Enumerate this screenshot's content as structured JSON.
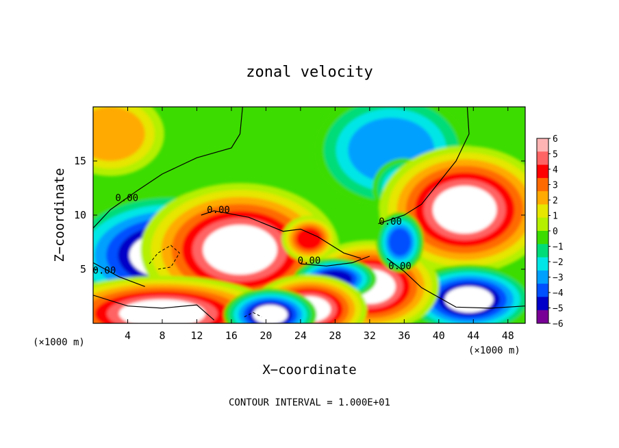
{
  "chart_data": {
    "type": "heatmap",
    "title": "zonal velocity",
    "xlabel": "X−coordinate",
    "ylabel": "Z−coordinate",
    "x_unit": "(×1000 m)",
    "y_unit": "(×1000 m)",
    "xlim": [
      0,
      50
    ],
    "ylim": [
      0,
      20
    ],
    "x_ticks": [
      4,
      8,
      12,
      16,
      20,
      24,
      28,
      32,
      36,
      40,
      44,
      48
    ],
    "y_ticks": [
      5,
      10,
      15
    ],
    "colorbar": {
      "min": -6,
      "max": 6,
      "ticks": [
        6,
        5,
        4,
        3,
        2,
        1,
        0,
        -1,
        -2,
        -3,
        -4,
        -5,
        -6
      ],
      "tick_labels": [
        "6",
        "5",
        "4",
        "3",
        "2",
        "1",
        "0",
        "−1",
        "−2",
        "−3",
        "−4",
        "−5",
        "−6"
      ],
      "colors": [
        "#ffb4b4",
        "#ff6464",
        "#ff0000",
        "#ff6a00",
        "#ffaa00",
        "#e6e600",
        "#b4f000",
        "#3cdc00",
        "#00dc78",
        "#00e6e6",
        "#00a0ff",
        "#0050ff",
        "#0000c8",
        "#780096"
      ]
    },
    "contour_labels": [
      {
        "text": "0.00",
        "x": 3.9,
        "y": 11.3
      },
      {
        "text": "0.00",
        "x": 14.5,
        "y": 10.2
      },
      {
        "text": "0.00",
        "x": 25.0,
        "y": 5.5
      },
      {
        "text": "0.00",
        "x": 34.4,
        "y": 9.1
      },
      {
        "text": "0.00",
        "x": 35.5,
        "y": 5.0
      },
      {
        "text": "0.00",
        "x": 1.3,
        "y": 4.6
      }
    ],
    "features": [
      {
        "kind": "positive",
        "level": 2,
        "cx": 2,
        "cy": 17.5,
        "rx": 4,
        "ry": 2.5
      },
      {
        "kind": "negative",
        "level": -3,
        "cx": 34.5,
        "cy": 16,
        "rx": 5,
        "ry": 3
      },
      {
        "kind": "negative",
        "level": -3,
        "cx": 36,
        "cy": 12.5,
        "rx": 2,
        "ry": 1.5
      },
      {
        "kind": "negative",
        "level": -6,
        "cx": 9,
        "cy": 6.3,
        "rx": 4.8,
        "ry": 2.2
      },
      {
        "kind": "positive",
        "level": 6,
        "cx": 17,
        "cy": 6.8,
        "rx": 4.3,
        "ry": 2.3
      },
      {
        "kind": "positive",
        "level": 6,
        "cx": 43,
        "cy": 10.5,
        "rx": 3.7,
        "ry": 2.2
      },
      {
        "kind": "negative",
        "level": -6,
        "cx": 43.5,
        "cy": 2.2,
        "rx": 2.8,
        "ry": 1.2
      },
      {
        "kind": "positive",
        "level": 6,
        "cx": 8,
        "cy": 0.9,
        "rx": 5,
        "ry": 1.3
      },
      {
        "kind": "positive",
        "level": 6,
        "cx": 32,
        "cy": 3.4,
        "rx": 3,
        "ry": 1.6
      },
      {
        "kind": "negative",
        "level": -5,
        "cx": 28,
        "cy": 4.1,
        "rx": 2,
        "ry": 0.8
      },
      {
        "kind": "positive",
        "level": 4,
        "cx": 25,
        "cy": 7.8,
        "rx": 1.5,
        "ry": 1
      },
      {
        "kind": "positive",
        "level": 6,
        "cx": 25,
        "cy": 1.3,
        "rx": 2.5,
        "ry": 1.2
      },
      {
        "kind": "negative",
        "level": -6,
        "cx": 20.5,
        "cy": 0.8,
        "rx": 2,
        "ry": 0.9
      },
      {
        "kind": "negative",
        "level": -4,
        "cx": 35.5,
        "cy": 7.5,
        "rx": 1.3,
        "ry": 1.3
      }
    ]
  },
  "annotation": {
    "contour_interval": "CONTOUR INTERVAL = 1.000E+01"
  }
}
